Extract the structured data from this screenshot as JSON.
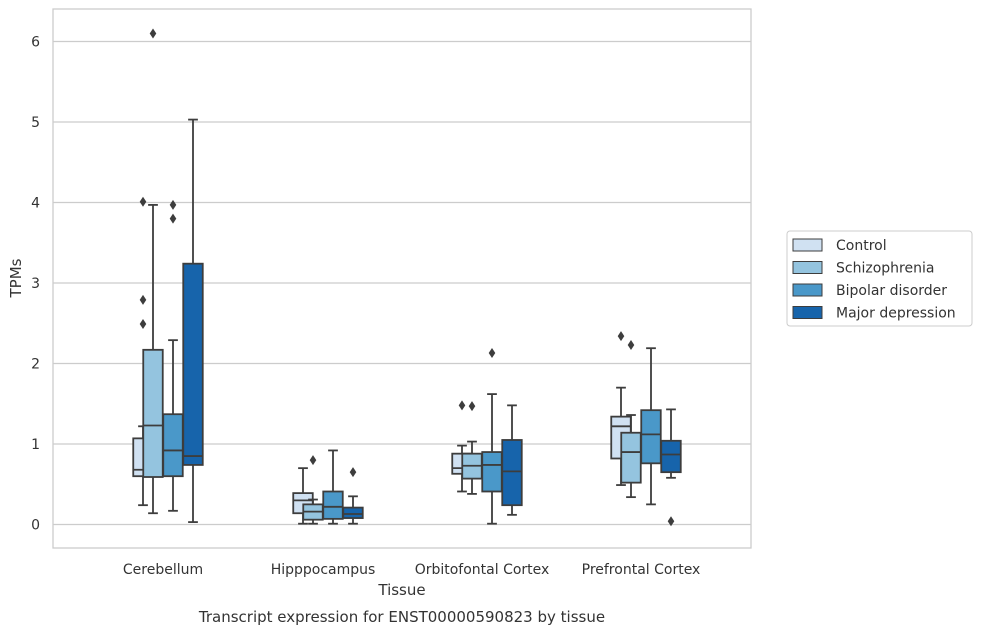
{
  "chart_data": {
    "type": "box",
    "title": "Transcript expression for ENST00000590823 by tissue",
    "xlabel": "Tissue",
    "ylabel": "TPMs",
    "ylim": [
      -0.3,
      6.4
    ],
    "yticks": [
      0,
      1,
      2,
      3,
      4,
      5,
      6
    ],
    "grid": "horizontal",
    "legend_position": "right",
    "categories": [
      "Cerebellum",
      "Hipppocampus",
      "Orbitofontal Cortex",
      "Prefrontal Cortex"
    ],
    "series": [
      {
        "name": "Control",
        "color": "#d0e1f2",
        "boxes": [
          {
            "whislo": 0.24,
            "q1": 0.6,
            "med": 0.68,
            "q3": 1.07,
            "whishi": 1.22,
            "fliers": [
              2.49,
              2.79,
              4.01
            ]
          },
          {
            "whislo": 0.01,
            "q1": 0.14,
            "med": 0.3,
            "q3": 0.39,
            "whishi": 0.7,
            "fliers": []
          },
          {
            "whislo": 0.41,
            "q1": 0.63,
            "med": 0.7,
            "q3": 0.88,
            "whishi": 0.98,
            "fliers": [
              1.48
            ]
          },
          {
            "whislo": 0.49,
            "q1": 0.82,
            "med": 1.22,
            "q3": 1.34,
            "whishi": 1.7,
            "fliers": [
              2.34
            ]
          }
        ]
      },
      {
        "name": "Schizophrenia",
        "color": "#94c4df",
        "boxes": [
          {
            "whislo": 0.14,
            "q1": 0.59,
            "med": 1.23,
            "q3": 2.17,
            "whishi": 3.97,
            "fliers": [
              6.1
            ]
          },
          {
            "whislo": 0.01,
            "q1": 0.06,
            "med": 0.16,
            "q3": 0.25,
            "whishi": 0.31,
            "fliers": [
              0.8
            ]
          },
          {
            "whislo": 0.38,
            "q1": 0.57,
            "med": 0.73,
            "q3": 0.88,
            "whishi": 1.03,
            "fliers": [
              1.47
            ]
          },
          {
            "whislo": 0.34,
            "q1": 0.52,
            "med": 0.9,
            "q3": 1.14,
            "whishi": 1.36,
            "fliers": [
              2.23
            ]
          }
        ]
      },
      {
        "name": "Bipolar disorder",
        "color": "#4a98c9",
        "boxes": [
          {
            "whislo": 0.17,
            "q1": 0.6,
            "med": 0.92,
            "q3": 1.37,
            "whishi": 2.29,
            "fliers": [
              3.8,
              3.97
            ]
          },
          {
            "whislo": 0.01,
            "q1": 0.07,
            "med": 0.22,
            "q3": 0.41,
            "whishi": 0.92,
            "fliers": []
          },
          {
            "whislo": 0.01,
            "q1": 0.41,
            "med": 0.74,
            "q3": 0.9,
            "whishi": 1.62,
            "fliers": [
              2.13
            ]
          },
          {
            "whislo": 0.25,
            "q1": 0.76,
            "med": 1.12,
            "q3": 1.42,
            "whishi": 2.19,
            "fliers": []
          }
        ]
      },
      {
        "name": "Major depression",
        "color": "#1764ab",
        "boxes": [
          {
            "whislo": 0.03,
            "q1": 0.74,
            "med": 0.85,
            "q3": 3.24,
            "whishi": 5.03,
            "fliers": []
          },
          {
            "whislo": 0.01,
            "q1": 0.08,
            "med": 0.13,
            "q3": 0.21,
            "whishi": 0.35,
            "fliers": [
              0.65
            ]
          },
          {
            "whislo": 0.12,
            "q1": 0.24,
            "med": 0.66,
            "q3": 1.05,
            "whishi": 1.48,
            "fliers": []
          },
          {
            "whislo": 0.58,
            "q1": 0.65,
            "med": 0.87,
            "q3": 1.04,
            "whishi": 1.43,
            "fliers": [
              0.04
            ]
          }
        ]
      }
    ]
  }
}
